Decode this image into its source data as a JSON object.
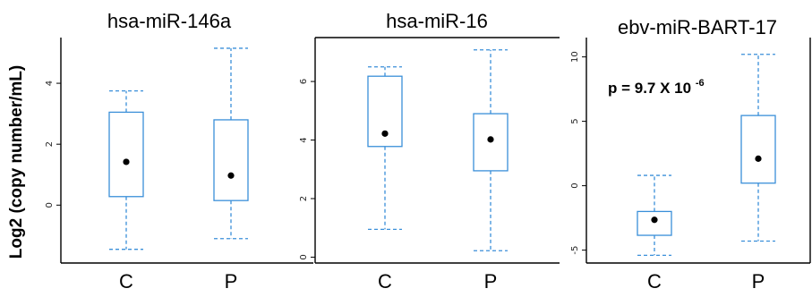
{
  "figure": {
    "ylabel": "Log2 (copy number/mL)"
  },
  "colors": {
    "box": "#3a8fd9",
    "median_point": "#000000",
    "frame": "#000000"
  },
  "chart_data": [
    {
      "type": "box",
      "title": "hsa-miR-146a",
      "categories": [
        "C",
        "P"
      ],
      "yticks": [
        0,
        2,
        4
      ],
      "ylim": [
        -1.9,
        5.5
      ],
      "boxes": [
        {
          "category": "C",
          "whisker_low": -1.45,
          "q1": 0.28,
          "q3": 3.05,
          "whisker_high": 3.75,
          "point": 1.42
        },
        {
          "category": "P",
          "whisker_low": -1.1,
          "q1": 0.15,
          "q3": 2.8,
          "whisker_high": 5.15,
          "point": 0.97
        }
      ]
    },
    {
      "type": "box",
      "title": "hsa-miR-16",
      "categories": [
        "C",
        "P"
      ],
      "yticks": [
        0,
        2,
        4,
        6
      ],
      "ylim": [
        -0.2,
        7.5
      ],
      "boxes": [
        {
          "category": "C",
          "whisker_low": 0.95,
          "q1": 3.78,
          "q3": 6.18,
          "whisker_high": 6.5,
          "point": 4.22
        },
        {
          "category": "P",
          "whisker_low": 0.22,
          "q1": 2.95,
          "q3": 4.9,
          "whisker_high": 7.08,
          "point": 4.02
        }
      ]
    },
    {
      "type": "box",
      "title": "ebv-miR-BART-17",
      "categories": [
        "C",
        "P"
      ],
      "yticks": [
        -5,
        0,
        5,
        10
      ],
      "ylim": [
        -6.0,
        11.5
      ],
      "annotation": {
        "text": "p = 9.7 X 10",
        "superscript": "-6"
      },
      "boxes": [
        {
          "category": "C",
          "whisker_low": -5.4,
          "q1": -3.85,
          "q3": -2.0,
          "whisker_high": 0.8,
          "point": -2.65
        },
        {
          "category": "P",
          "whisker_low": -4.3,
          "q1": 0.2,
          "q3": 5.45,
          "whisker_high": 10.2,
          "point": 2.1
        }
      ]
    }
  ]
}
